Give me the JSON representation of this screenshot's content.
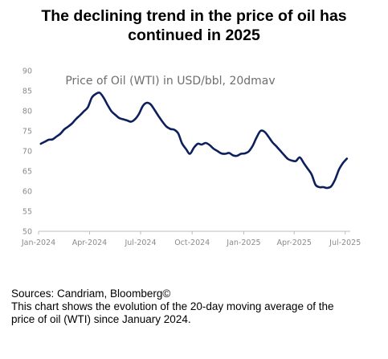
{
  "title_lines": [
    "The declining trend in the price of oil has",
    "continued in 2025"
  ],
  "caption": {
    "sources": "Sources: Candriam, Bloomberg©",
    "description_line1": "This chart shows the evolution of the 20-day moving average of the",
    "description_line2": "price of oil (WTI) since January 2024."
  },
  "colors": {
    "line": "#0d1f5c",
    "axis": "#bdbdbd",
    "tick_text": "#8a8a8a"
  },
  "chart_data": {
    "type": "line",
    "title": "Price of Oil (WTI) in USD/bbl, 20dmav",
    "xlabel": "",
    "ylabel": "",
    "ylim": [
      50,
      90
    ],
    "yticks": [
      50,
      55,
      60,
      65,
      70,
      75,
      80,
      85,
      90
    ],
    "xlim": [
      "2024-01-01",
      "2025-07-10"
    ],
    "xticks": [
      {
        "date": "2024-01-01",
        "label": "Jan-2024"
      },
      {
        "date": "2024-04-01",
        "label": "Apr-2024"
      },
      {
        "date": "2024-07-01",
        "label": "Jul-2024"
      },
      {
        "date": "2024-10-01",
        "label": "Oct-2024"
      },
      {
        "date": "2025-01-01",
        "label": "Jan-2025"
      },
      {
        "date": "2025-04-01",
        "label": "Apr-2025"
      },
      {
        "date": "2025-07-01",
        "label": "Jul-2025"
      }
    ],
    "grid": false,
    "series": [
      {
        "x": [
          "2024-01-05",
          "2024-01-12",
          "2024-01-19",
          "2024-01-26",
          "2024-02-02",
          "2024-02-09",
          "2024-02-16",
          "2024-02-23",
          "2024-03-01",
          "2024-03-08",
          "2024-03-15",
          "2024-03-22",
          "2024-03-29",
          "2024-04-05",
          "2024-04-12",
          "2024-04-19",
          "2024-04-26",
          "2024-05-03",
          "2024-05-10",
          "2024-05-17",
          "2024-05-24",
          "2024-05-31",
          "2024-06-07",
          "2024-06-14",
          "2024-06-21",
          "2024-06-28",
          "2024-07-05",
          "2024-07-12",
          "2024-07-19",
          "2024-07-26",
          "2024-08-02",
          "2024-08-09",
          "2024-08-16",
          "2024-08-23",
          "2024-08-30",
          "2024-09-06",
          "2024-09-13",
          "2024-09-20",
          "2024-09-27",
          "2024-10-04",
          "2024-10-11",
          "2024-10-18",
          "2024-10-25",
          "2024-11-01",
          "2024-11-08",
          "2024-11-15",
          "2024-11-22",
          "2024-11-29",
          "2024-12-06",
          "2024-12-13",
          "2024-12-20",
          "2024-12-27",
          "2025-01-03",
          "2025-01-10",
          "2025-01-17",
          "2025-01-24",
          "2025-01-31",
          "2025-02-07",
          "2025-02-14",
          "2025-02-21",
          "2025-02-28",
          "2025-03-07",
          "2025-03-14",
          "2025-03-21",
          "2025-03-28",
          "2025-04-04",
          "2025-04-11",
          "2025-04-18",
          "2025-04-25",
          "2025-05-02",
          "2025-05-09",
          "2025-05-16",
          "2025-05-23",
          "2025-05-30",
          "2025-06-06",
          "2025-06-13",
          "2025-06-20",
          "2025-06-27",
          "2025-07-04"
        ],
        "y": [
          71.8,
          72.3,
          72.8,
          72.9,
          73.6,
          74.3,
          75.4,
          76.1,
          76.9,
          78.0,
          78.9,
          79.9,
          80.9,
          83.3,
          84.2,
          84.5,
          83.3,
          81.5,
          79.9,
          79.0,
          78.2,
          77.9,
          77.6,
          77.3,
          77.9,
          79.2,
          81.2,
          82.0,
          81.6,
          80.2,
          78.7,
          77.3,
          76.1,
          75.5,
          75.3,
          74.4,
          71.9,
          70.5,
          69.3,
          70.8,
          71.8,
          71.6,
          72.0,
          71.5,
          70.6,
          70.0,
          69.4,
          69.3,
          69.5,
          68.9,
          68.8,
          69.3,
          69.4,
          69.9,
          71.3,
          73.4,
          75.0,
          74.8,
          73.6,
          72.2,
          71.2,
          70.1,
          69.0,
          68.0,
          67.6,
          67.5,
          68.4,
          67.0,
          65.6,
          64.2,
          61.6,
          61.0,
          61.0,
          60.8,
          61.2,
          62.9,
          65.4,
          67.0,
          68.1
        ]
      }
    ]
  }
}
